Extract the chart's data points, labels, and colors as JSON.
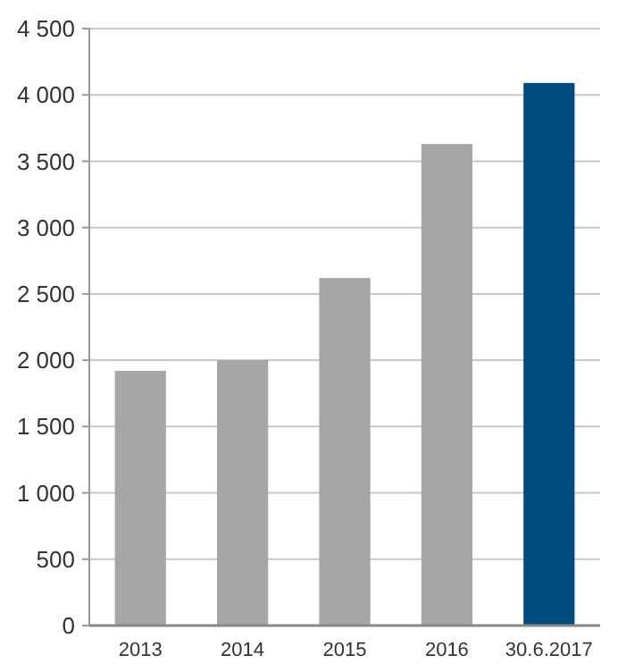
{
  "chart_data": {
    "type": "bar",
    "categories": [
      "2013",
      "2014",
      "2015",
      "2016",
      "30.6.2017"
    ],
    "values": [
      1920,
      2000,
      2620,
      3630,
      4090
    ],
    "colors": [
      "#a6a6a6",
      "#a6a6a6",
      "#a6a6a6",
      "#a6a6a6",
      "#004a7c"
    ],
    "ylim": [
      0,
      4500
    ],
    "yticks": [
      0,
      500,
      {
        "value": 1000,
        "label": "1 000"
      },
      {
        "value": 1500,
        "label": "1 500"
      },
      {
        "value": 2000,
        "label": "2 000"
      },
      {
        "value": 2500,
        "label": "2 500"
      },
      {
        "value": 3000,
        "label": "3 000"
      },
      {
        "value": 3500,
        "label": "3 500"
      },
      {
        "value": 4000,
        "label": "4 000"
      },
      {
        "value": 4500,
        "label": "4 500"
      }
    ],
    "grid": "y"
  }
}
